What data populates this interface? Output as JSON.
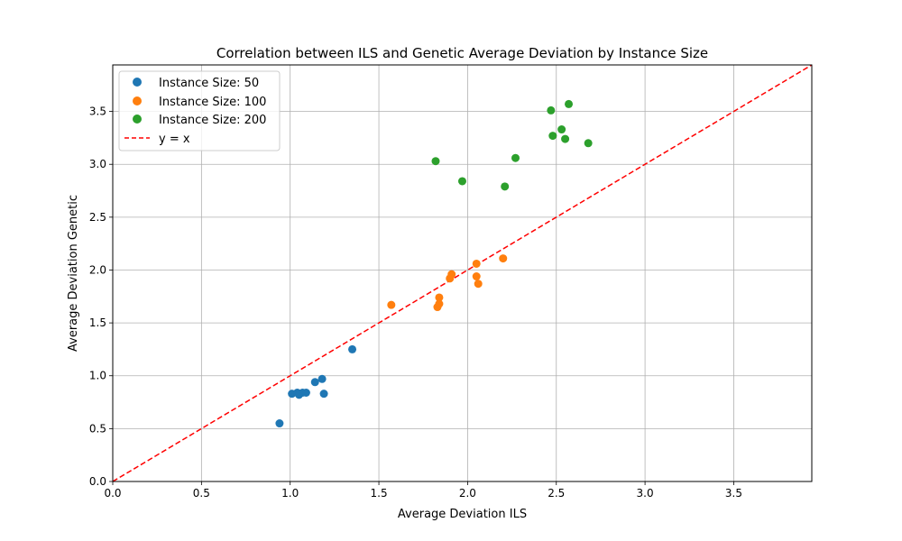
{
  "chart_data": {
    "type": "scatter",
    "title": "Correlation between ILS and Genetic Average Deviation by Instance Size",
    "xlabel": "Average Deviation ILS",
    "ylabel": "Average Deviation Genetic",
    "xlim": [
      0.0,
      3.94
    ],
    "ylim": [
      0.0,
      3.94
    ],
    "xticks": [
      "0.0",
      "0.5",
      "1.0",
      "1.5",
      "2.0",
      "2.5",
      "3.0",
      "3.5"
    ],
    "yticks": [
      "0.0",
      "0.5",
      "1.0",
      "1.5",
      "2.0",
      "2.5",
      "3.0",
      "3.5"
    ],
    "grid": true,
    "legend_position": "top-left",
    "series": [
      {
        "name": "Instance Size: 50",
        "color": "#1f77b4",
        "points": [
          [
            0.94,
            0.55
          ],
          [
            1.01,
            0.83
          ],
          [
            1.04,
            0.84
          ],
          [
            1.05,
            0.82
          ],
          [
            1.07,
            0.84
          ],
          [
            1.09,
            0.84
          ],
          [
            1.14,
            0.94
          ],
          [
            1.18,
            0.97
          ],
          [
            1.19,
            0.83
          ],
          [
            1.35,
            1.25
          ]
        ]
      },
      {
        "name": "Instance Size: 100",
        "color": "#ff7f0e",
        "points": [
          [
            1.57,
            1.67
          ],
          [
            1.83,
            1.65
          ],
          [
            1.84,
            1.68
          ],
          [
            1.84,
            1.74
          ],
          [
            1.9,
            1.92
          ],
          [
            1.91,
            1.96
          ],
          [
            2.05,
            2.06
          ],
          [
            2.05,
            1.94
          ],
          [
            2.06,
            1.87
          ],
          [
            2.2,
            2.11
          ]
        ]
      },
      {
        "name": "Instance Size: 200",
        "color": "#2ca02c",
        "points": [
          [
            1.82,
            3.03
          ],
          [
            1.97,
            2.84
          ],
          [
            2.21,
            2.79
          ],
          [
            2.27,
            3.06
          ],
          [
            2.47,
            3.51
          ],
          [
            2.48,
            3.27
          ],
          [
            2.53,
            3.33
          ],
          [
            2.55,
            3.24
          ],
          [
            2.57,
            3.57
          ],
          [
            2.68,
            3.2
          ]
        ]
      }
    ],
    "reference_line": {
      "name": "y = x",
      "color": "#ff0000",
      "style": "dashed"
    }
  }
}
